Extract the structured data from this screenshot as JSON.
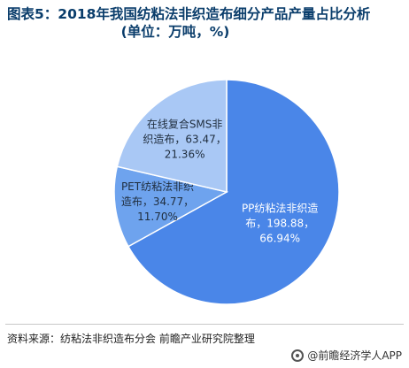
{
  "title": {
    "line1": "图表5：2018年我国纺粘法非织造布细分产品产量占比分析",
    "line2": "(单位：万吨，%)"
  },
  "chart_data": {
    "type": "pie",
    "title": "图表5：2018年我国纺粘法非织造布细分产品产量占比分析 (单位：万吨，%)",
    "slices": [
      {
        "name": "PP纺粘法非织造布",
        "value": 198.88,
        "percent": 66.94,
        "color": "#4a86e8",
        "label_lines": [
          "PP纺粘法非织造",
          "布，198.88，",
          "66.94%"
        ]
      },
      {
        "name": "PET纺粘法非织造布",
        "value": 34.77,
        "percent": 11.7,
        "color": "#6ea3ee",
        "label_lines": [
          "PET纺粘法非织",
          "造布，34.77，",
          "11.70%"
        ]
      },
      {
        "name": "在线复合SMS非织造布",
        "value": 63.47,
        "percent": 21.36,
        "color": "#a9c8f5",
        "label_lines": [
          "在线复合SMS非",
          "织造布，63.47，",
          "21.36%"
        ]
      }
    ]
  },
  "footer": {
    "source": "资料来源：纺粘法非织造布分会 前瞻产业研究院整理",
    "brand": "@前瞻经济学人APP"
  }
}
